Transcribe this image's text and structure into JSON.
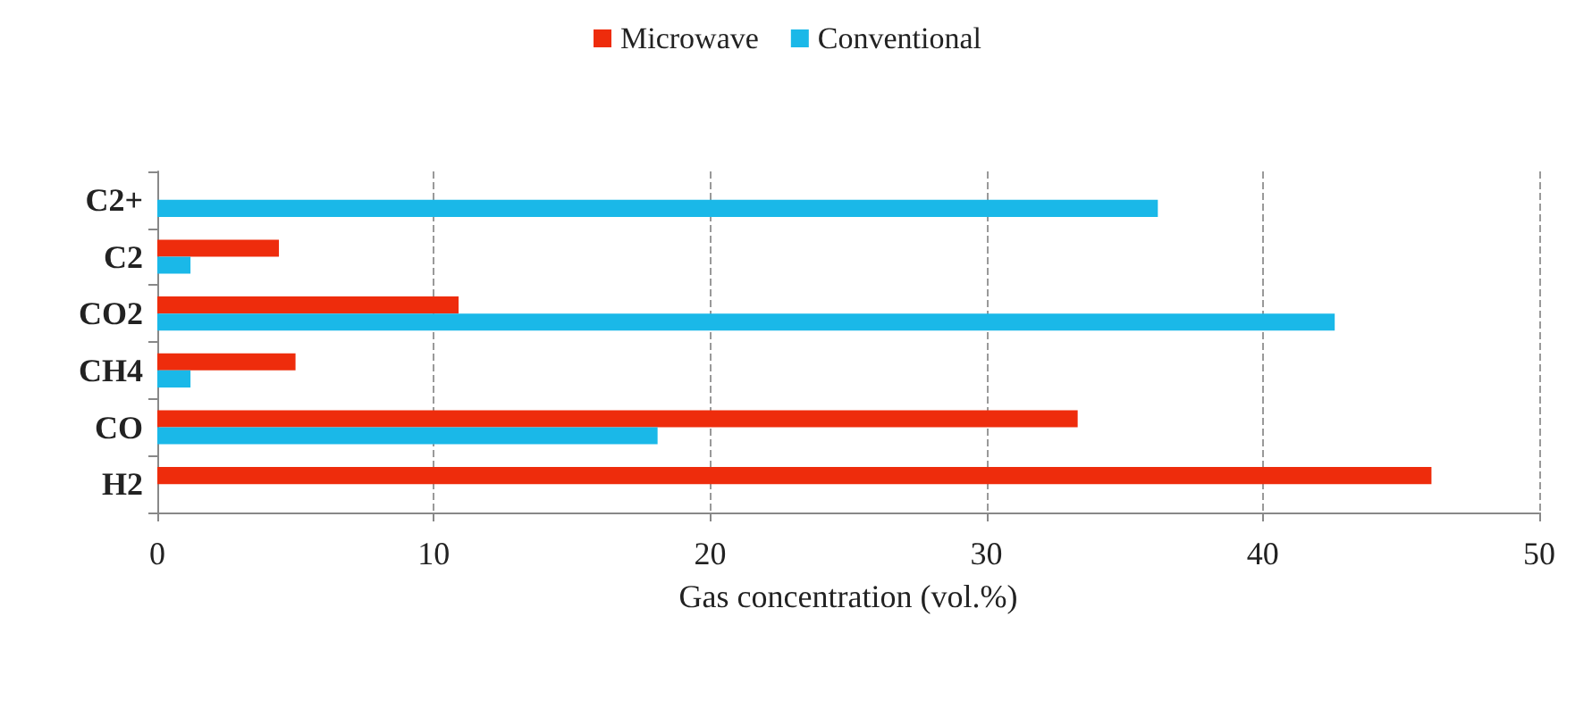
{
  "chart_data": {
    "type": "bar",
    "orientation": "horizontal",
    "xlabel": "Gas concentration (vol.%)",
    "categories": [
      "C2+",
      "C2",
      "CO2",
      "CH4",
      "CO",
      "H2"
    ],
    "series": [
      {
        "name": "Microwave",
        "color": "#ee2c0c",
        "values": [
          null,
          4.4,
          10.9,
          5.0,
          33.3,
          46.1
        ]
      },
      {
        "name": "Conventional",
        "color": "#1ab8e8",
        "values": [
          36.2,
          1.2,
          42.6,
          1.2,
          18.1,
          null
        ]
      }
    ],
    "xlim": [
      0,
      50
    ],
    "xticks": [
      0,
      10,
      20,
      30,
      40,
      50
    ],
    "grid": "x",
    "legend": "top"
  }
}
